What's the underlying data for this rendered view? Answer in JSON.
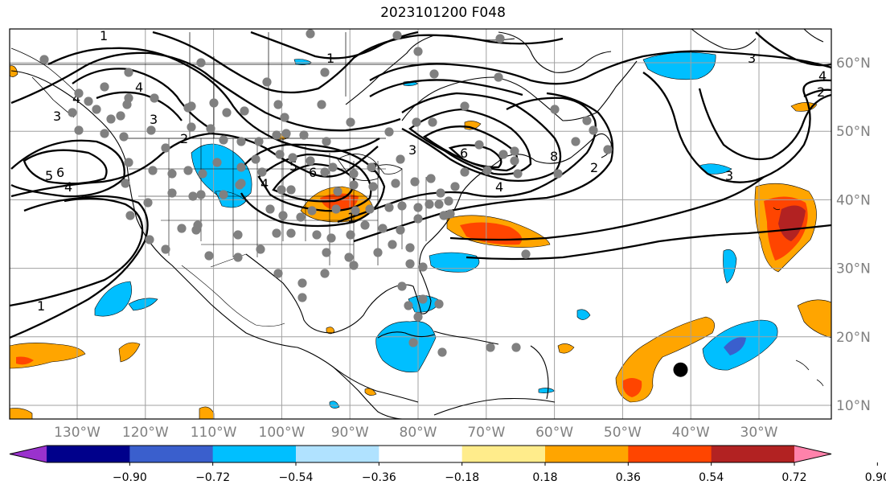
{
  "title": "2023101200 F048",
  "longitude_labels": [
    "130°W",
    "120°W",
    "110°W",
    "100°W",
    "90°W",
    "80°W",
    "70°W",
    "60°W",
    "50°W",
    "40°W",
    "30°W"
  ],
  "latitude_labels": [
    "60°N",
    "50°N",
    "40°N",
    "30°N",
    "20°N",
    "10°N"
  ],
  "colorbar": {
    "colors": [
      "#9a32cd",
      "#00008b",
      "#3a5fcd",
      "#00bfff",
      "#b0e2ff",
      "#ffffff",
      "#ffec8b",
      "#ffa500",
      "#ff4500",
      "#b22222",
      "#ff82ab"
    ],
    "tick_labels": [
      "−0.90",
      "−0.72",
      "−0.54",
      "−0.36",
      "−0.18",
      "0.18",
      "0.36",
      "0.54",
      "0.72",
      "0.90"
    ],
    "tick_values": [
      -0.9,
      -0.72,
      -0.54,
      -0.36,
      -0.18,
      0.18,
      0.36,
      0.54,
      0.72,
      0.9
    ]
  },
  "contour_labels": [
    "1",
    "4",
    "3",
    "2",
    "4",
    "3",
    "5",
    "6",
    "4",
    "5",
    "6",
    "4",
    "2",
    "1",
    "3",
    "6",
    "8",
    "4",
    "2",
    "3",
    "3",
    "4",
    "2",
    "1",
    "1"
  ],
  "stations_shown": true,
  "marker": {
    "lon": -41.5,
    "lat": 15.2,
    "color": "#000000"
  }
}
